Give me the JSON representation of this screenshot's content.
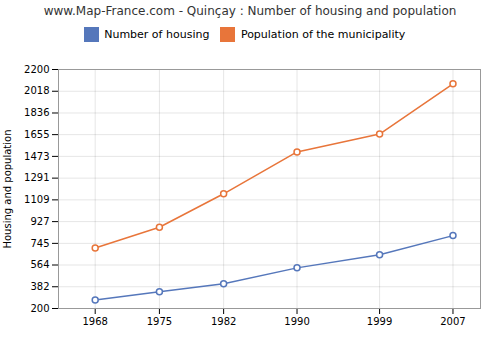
{
  "chart_data": {
    "type": "line",
    "title": "www.Map-France.com - Quinçay : Number of housing and population",
    "ylabel": "Housing and population",
    "x": [
      1968,
      1975,
      1982,
      1990,
      1999,
      2007
    ],
    "series": [
      {
        "name": "Number of housing",
        "color": "#5577bb",
        "marker": "circle",
        "values": [
          271,
          340,
          407,
          540,
          650,
          810
        ]
      },
      {
        "name": "Population of the municipality",
        "color": "#e8753a",
        "marker": "circle",
        "values": [
          706,
          880,
          1160,
          1510,
          1660,
          2080
        ]
      }
    ],
    "xlim": [
      1964,
      2010
    ],
    "xticks": [
      1968,
      1975,
      1982,
      1990,
      1999,
      2007
    ],
    "ylim": [
      200,
      2200
    ],
    "yticks": [
      200,
      382,
      564,
      745,
      927,
      1109,
      1291,
      1473,
      1655,
      1836,
      2018,
      2200
    ],
    "grid": true,
    "legend": "top"
  }
}
